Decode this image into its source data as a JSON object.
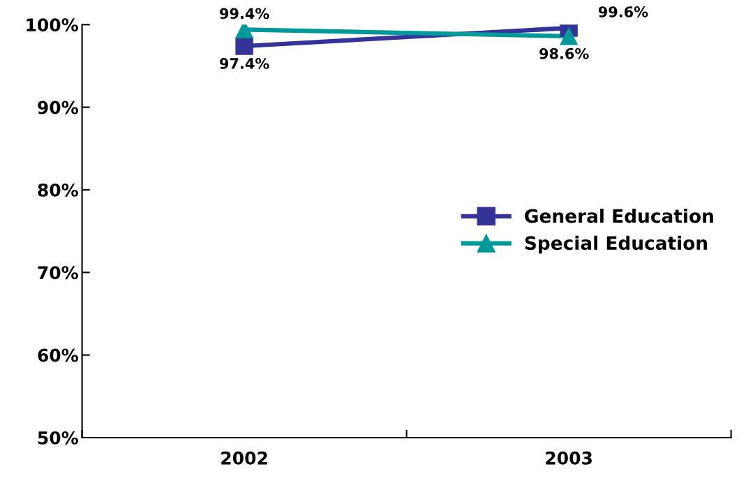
{
  "chart_data": {
    "type": "line",
    "x": [
      2002,
      2003
    ],
    "xlim": [
      2001.5,
      2003.5
    ],
    "xticks": [
      {
        "value": 2001.5,
        "label": null
      },
      2002,
      {
        "value": 2002.5,
        "label": null
      },
      2003,
      {
        "value": 2003.5,
        "label": null
      }
    ],
    "series": [
      {
        "name": "General Education",
        "color": "#333399",
        "marker": "square",
        "values": [
          97.4,
          99.6
        ],
        "value_labels": [
          "97.4%",
          "99.6%"
        ]
      },
      {
        "name": "Special Education",
        "color": "#009999",
        "marker": "triangle",
        "values": [
          99.4,
          98.6
        ],
        "value_labels": [
          "99.4%",
          "98.6%"
        ]
      }
    ],
    "ylim": [
      50,
      100
    ],
    "yticks": [
      {
        "value": 50,
        "label": "50%"
      },
      {
        "value": 60,
        "label": "60%"
      },
      {
        "value": 70,
        "label": "70%"
      },
      {
        "value": 80,
        "label": "80%"
      },
      {
        "value": 90,
        "label": "90%"
      },
      {
        "value": 100,
        "label": "100%"
      }
    ],
    "grid": false,
    "legend": "right",
    "line_style": "solid"
  }
}
